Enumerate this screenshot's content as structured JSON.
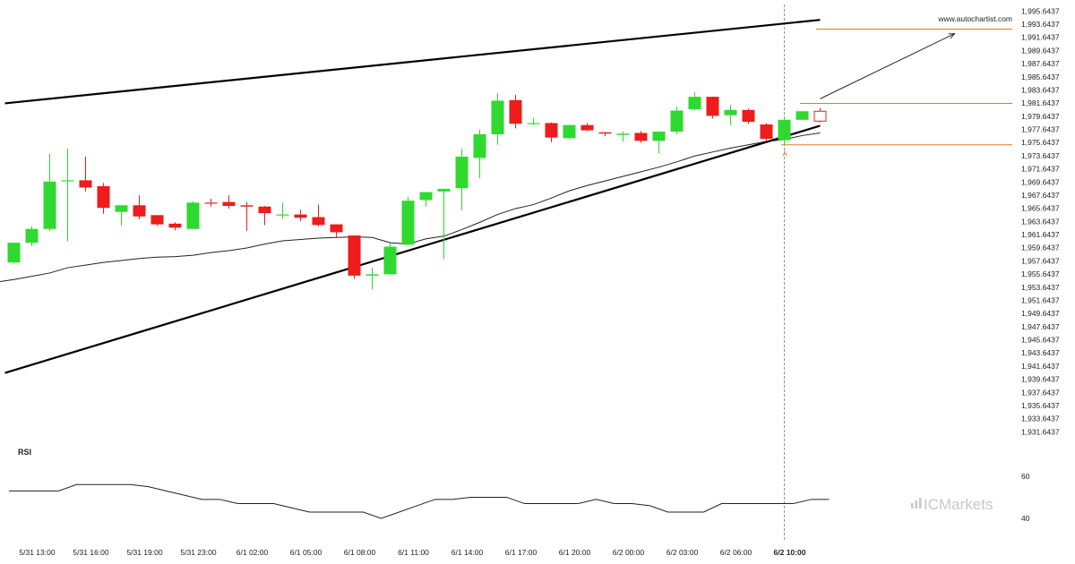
{
  "brand": {
    "name": "ICMarkets",
    "website": "www.autochartist.com"
  },
  "chart_data": {
    "type": "candlestick",
    "y_ticks": [
      "1,995.6437",
      "1,993.6437",
      "1,991.6437",
      "1,989.6437",
      "1,987.6437",
      "1,985.6437",
      "1,983.6437",
      "1,981.6437",
      "1,979.6437",
      "1,977.6437",
      "1,975.6437",
      "1,973.6437",
      "1,971.6437",
      "1,969.6437",
      "1,967.6437",
      "1,965.6437",
      "1,963.6437",
      "1,961.6437",
      "1,959.6437",
      "1,957.6437",
      "1,955.6437",
      "1,953.6437",
      "1,951.6437",
      "1,949.6437",
      "1,947.6437",
      "1,945.6437",
      "1,943.6437",
      "1,941.6437",
      "1,939.6437",
      "1,937.6437",
      "1,935.6437",
      "1,933.6437",
      "1,931.6437"
    ],
    "y_tick_values": [
      1995.6437,
      1993.6437,
      1991.6437,
      1989.6437,
      1987.6437,
      1985.6437,
      1983.6437,
      1981.6437,
      1979.6437,
      1977.6437,
      1975.6437,
      1973.6437,
      1971.6437,
      1969.6437,
      1967.6437,
      1965.6437,
      1963.6437,
      1961.6437,
      1959.6437,
      1957.6437,
      1955.6437,
      1953.6437,
      1951.6437,
      1949.6437,
      1947.6437,
      1945.6437,
      1943.6437,
      1941.6437,
      1939.6437,
      1937.6437,
      1935.6437,
      1933.6437,
      1931.6437
    ],
    "ylim": [
      1930.6,
      1996.3
    ],
    "x_ticks": [
      {
        "label": "5/31 13:00",
        "i": 1
      },
      {
        "label": "5/31 16:00",
        "i": 4
      },
      {
        "label": "5/31 19:00",
        "i": 7
      },
      {
        "label": "5/31 23:00",
        "i": 10
      },
      {
        "label": "6/1 02:00",
        "i": 13
      },
      {
        "label": "6/1 05:00",
        "i": 16
      },
      {
        "label": "6/1 08:00",
        "i": 19
      },
      {
        "label": "6/1 11:00",
        "i": 22
      },
      {
        "label": "6/1 14:00",
        "i": 25
      },
      {
        "label": "6/1 17:00",
        "i": 28
      },
      {
        "label": "6/1 20:00",
        "i": 31
      },
      {
        "label": "6/2 00:00",
        "i": 34
      },
      {
        "label": "6/2 03:00",
        "i": 37
      },
      {
        "label": "6/2 06:00",
        "i": 40
      },
      {
        "label": "6/2 10:00",
        "i": 43
      }
    ],
    "highlight_x_label": "6/2 10:00",
    "candles": [
      {
        "o": 1957.4,
        "h": 1960.4,
        "l": 1957.2,
        "c": 1960.4
      },
      {
        "o": 1960.4,
        "h": 1962.9,
        "l": 1959.9,
        "c": 1962.5
      },
      {
        "o": 1962.5,
        "h": 1973.9,
        "l": 1962.2,
        "c": 1969.7
      },
      {
        "o": 1969.8,
        "h": 1974.7,
        "l": 1960.6,
        "c": 1969.9
      },
      {
        "o": 1969.9,
        "h": 1973.5,
        "l": 1968.2,
        "c": 1968.8
      },
      {
        "o": 1969.0,
        "h": 1969.5,
        "l": 1964.8,
        "c": 1965.7
      },
      {
        "o": 1965.1,
        "h": 1966.1,
        "l": 1963.0,
        "c": 1966.1
      },
      {
        "o": 1966.1,
        "h": 1967.6,
        "l": 1964.0,
        "c": 1964.4
      },
      {
        "o": 1964.6,
        "h": 1964.6,
        "l": 1963.0,
        "c": 1963.2
      },
      {
        "o": 1963.3,
        "h": 1963.5,
        "l": 1962.3,
        "c": 1962.7
      },
      {
        "o": 1962.5,
        "h": 1966.7,
        "l": 1962.5,
        "c": 1966.5
      },
      {
        "o": 1966.5,
        "h": 1967.1,
        "l": 1965.9,
        "c": 1966.4
      },
      {
        "o": 1966.6,
        "h": 1967.6,
        "l": 1965.6,
        "c": 1966.0
      },
      {
        "o": 1966.1,
        "h": 1966.6,
        "l": 1962.2,
        "c": 1965.9
      },
      {
        "o": 1965.9,
        "h": 1966.0,
        "l": 1963.1,
        "c": 1964.9
      },
      {
        "o": 1964.7,
        "h": 1966.5,
        "l": 1964.0,
        "c": 1964.7
      },
      {
        "o": 1964.7,
        "h": 1965.4,
        "l": 1963.7,
        "c": 1964.2
      },
      {
        "o": 1964.3,
        "h": 1966.2,
        "l": 1962.9,
        "c": 1963.1
      },
      {
        "o": 1963.2,
        "h": 1963.2,
        "l": 1961.2,
        "c": 1962.0
      },
      {
        "o": 1961.5,
        "h": 1961.5,
        "l": 1954.9,
        "c": 1955.4
      },
      {
        "o": 1955.4,
        "h": 1956.6,
        "l": 1953.3,
        "c": 1955.6
      },
      {
        "o": 1955.6,
        "h": 1960.3,
        "l": 1955.6,
        "c": 1959.8
      },
      {
        "o": 1960.1,
        "h": 1967.4,
        "l": 1960.1,
        "c": 1966.8
      },
      {
        "o": 1966.9,
        "h": 1968.1,
        "l": 1965.9,
        "c": 1968.1
      },
      {
        "o": 1968.2,
        "h": 1968.6,
        "l": 1957.9,
        "c": 1968.6
      },
      {
        "o": 1968.7,
        "h": 1974.7,
        "l": 1965.3,
        "c": 1973.5
      },
      {
        "o": 1973.3,
        "h": 1977.6,
        "l": 1970.2,
        "c": 1976.9
      },
      {
        "o": 1976.9,
        "h": 1983.2,
        "l": 1975.3,
        "c": 1982.0
      },
      {
        "o": 1982.1,
        "h": 1982.9,
        "l": 1977.8,
        "c": 1978.5
      },
      {
        "o": 1978.5,
        "h": 1979.4,
        "l": 1978.3,
        "c": 1978.6
      },
      {
        "o": 1978.6,
        "h": 1978.7,
        "l": 1975.7,
        "c": 1976.4
      },
      {
        "o": 1976.3,
        "h": 1978.3,
        "l": 1976.2,
        "c": 1978.3
      },
      {
        "o": 1978.3,
        "h": 1978.6,
        "l": 1977.4,
        "c": 1977.5
      },
      {
        "o": 1977.2,
        "h": 1977.2,
        "l": 1976.6,
        "c": 1977.0
      },
      {
        "o": 1976.8,
        "h": 1977.3,
        "l": 1975.8,
        "c": 1977.0
      },
      {
        "o": 1977.1,
        "h": 1977.4,
        "l": 1975.6,
        "c": 1975.9
      },
      {
        "o": 1975.9,
        "h": 1977.3,
        "l": 1974.0,
        "c": 1977.3
      },
      {
        "o": 1977.3,
        "h": 1981.1,
        "l": 1976.9,
        "c": 1980.5
      },
      {
        "o": 1980.7,
        "h": 1983.3,
        "l": 1980.5,
        "c": 1982.6
      },
      {
        "o": 1982.6,
        "h": 1982.6,
        "l": 1979.3,
        "c": 1979.7
      },
      {
        "o": 1979.8,
        "h": 1981.4,
        "l": 1978.3,
        "c": 1980.6
      },
      {
        "o": 1980.6,
        "h": 1980.8,
        "l": 1978.5,
        "c": 1978.8
      },
      {
        "o": 1978.4,
        "h": 1978.6,
        "l": 1975.8,
        "c": 1976.2
      },
      {
        "o": 1976.0,
        "h": 1979.6,
        "l": 1975.2,
        "c": 1979.1
      },
      {
        "o": 1979.1,
        "h": 1980.4,
        "l": 1979.1,
        "c": 1980.4
      },
      {
        "o": 1980.4,
        "h": 1980.9,
        "l": 1978.7,
        "c": 1978.9
      }
    ],
    "last_candle_style": "outline",
    "moving_average": [
      1954.8,
      1955.3,
      1955.8,
      1956.6,
      1957.0,
      1957.4,
      1957.7,
      1958.0,
      1958.2,
      1958.3,
      1958.5,
      1958.9,
      1959.2,
      1959.6,
      1960.2,
      1960.7,
      1960.9,
      1961.1,
      1961.2,
      1961.3,
      1961.2,
      1960.4,
      1960.2,
      1961.0,
      1961.4,
      1962.4,
      1963.5,
      1964.7,
      1965.6,
      1966.2,
      1967.2,
      1968.3,
      1969.1,
      1969.8,
      1970.5,
      1971.2,
      1971.9,
      1972.7,
      1973.6,
      1974.2,
      1974.8,
      1975.3,
      1975.8,
      1976.1,
      1976.7,
      1977.1
    ],
    "trendlines": [
      {
        "name": "resistance",
        "from": {
          "i": -0.5,
          "y": 1981.6
        },
        "to": {
          "i": 45,
          "y": 1994.3
        }
      },
      {
        "name": "support",
        "from": {
          "i": -0.5,
          "y": 1940.6
        },
        "to": {
          "i": 45,
          "y": 1978.2
        }
      }
    ],
    "forecast_arrow": {
      "from": {
        "i": 45,
        "y": 1982.3
      },
      "to": {
        "i": 52.5,
        "y": 1992.2
      }
    },
    "levels": [
      {
        "name": "target",
        "y": 1992.9
      },
      {
        "name": "upper",
        "y": 1981.6
      },
      {
        "name": "lower",
        "y": 1975.3
      }
    ],
    "marker": {
      "label": "A",
      "i": 43,
      "y": 1974.0
    },
    "rsi": {
      "label": "RSI",
      "y_ticks": [
        "60",
        "40"
      ],
      "y_tick_values": [
        60,
        40
      ],
      "ylim": [
        32,
        65
      ],
      "values": [
        53,
        53,
        53,
        56,
        56,
        56,
        56,
        55,
        53,
        51,
        49,
        49,
        47,
        47,
        47,
        45,
        43,
        43,
        43,
        43,
        40,
        43,
        46,
        49,
        49,
        50,
        50,
        50,
        47,
        47,
        47,
        47,
        49,
        47,
        47,
        46,
        43,
        43,
        43,
        47,
        47,
        47,
        47,
        47,
        49,
        49
      ]
    }
  }
}
